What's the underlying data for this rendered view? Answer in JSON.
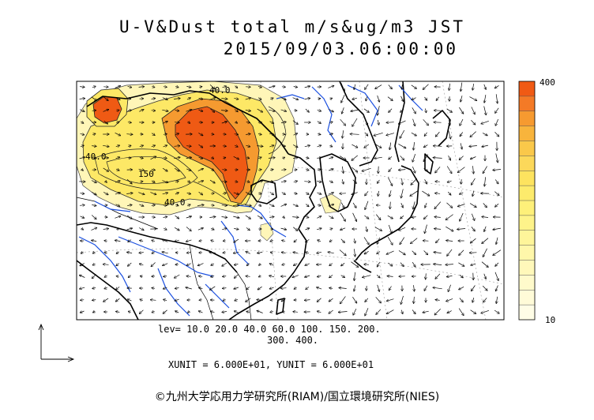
{
  "title": {
    "line1": "U-V&Dust total m/s&ug/m3 JST",
    "line2": "2015/09/03.06:00:00"
  },
  "colorbar": {
    "max_label": "400",
    "min_label": "10",
    "colors": [
      "#f05a14",
      "#f47a26",
      "#f69a30",
      "#f8b43c",
      "#fac84a",
      "#fcd85a",
      "#fde35f",
      "#fdeb6c",
      "#fef07a",
      "#fef38a",
      "#fef59a",
      "#fff7aa",
      "#fff8ba",
      "#fffacb",
      "#fffbd8",
      "#fffde6"
    ]
  },
  "contour_labels": [
    "40.0",
    "40.0",
    "150",
    "40.0"
  ],
  "levels": {
    "line1": "lev= 10.0 20.0 40.0 60.0 100. 150. 200.",
    "line2": "300. 400."
  },
  "units": "XUNIT = 6.000E+01, YUNIT = 6.000E+01",
  "copyright": "©九州大学応用力学研究所(RIAM)/国立環境研究所(NIES)",
  "colors": {
    "coast": "#000000",
    "river": "#1a4fe0",
    "frame": "#000000",
    "arrow": "#000000",
    "grid": "#9a9a9a"
  }
}
